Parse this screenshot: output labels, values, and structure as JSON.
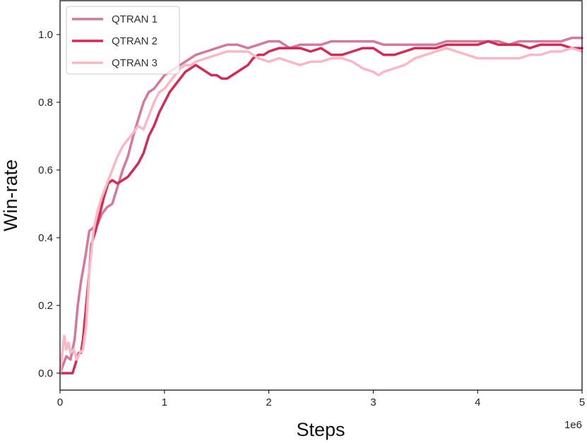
{
  "chart_data": {
    "type": "line",
    "title": "",
    "xlabel": "Steps",
    "ylabel": "Win-rate",
    "x_offset_label": "1e6",
    "xlim": [
      0,
      5
    ],
    "ylim": [
      -0.05,
      1.1
    ],
    "xticks": [
      "0",
      "1",
      "2",
      "3",
      "4",
      "5"
    ],
    "yticks": [
      "0.0",
      "0.2",
      "0.4",
      "0.6",
      "0.8",
      "1.0"
    ],
    "grid": false,
    "legend_position": "upper-left",
    "series": [
      {
        "name": "QTRAN 1",
        "color": "#d4789c",
        "points": [
          [
            0,
            0.0
          ],
          [
            0.06,
            0.05
          ],
          [
            0.1,
            0.04
          ],
          [
            0.14,
            0.1
          ],
          [
            0.17,
            0.2
          ],
          [
            0.2,
            0.27
          ],
          [
            0.24,
            0.34
          ],
          [
            0.28,
            0.42
          ],
          [
            0.32,
            0.43
          ],
          [
            0.36,
            0.44
          ],
          [
            0.4,
            0.47
          ],
          [
            0.45,
            0.49
          ],
          [
            0.5,
            0.5
          ],
          [
            0.55,
            0.55
          ],
          [
            0.6,
            0.6
          ],
          [
            0.65,
            0.64
          ],
          [
            0.7,
            0.7
          ],
          [
            0.75,
            0.75
          ],
          [
            0.8,
            0.8
          ],
          [
            0.85,
            0.83
          ],
          [
            0.9,
            0.84
          ],
          [
            0.95,
            0.86
          ],
          [
            1.0,
            0.88
          ],
          [
            1.05,
            0.89
          ],
          [
            1.1,
            0.9
          ],
          [
            1.15,
            0.91
          ],
          [
            1.2,
            0.92
          ],
          [
            1.3,
            0.94
          ],
          [
            1.4,
            0.95
          ],
          [
            1.5,
            0.96
          ],
          [
            1.6,
            0.97
          ],
          [
            1.7,
            0.97
          ],
          [
            1.8,
            0.96
          ],
          [
            1.9,
            0.97
          ],
          [
            2.0,
            0.98
          ],
          [
            2.1,
            0.98
          ],
          [
            2.2,
            0.96
          ],
          [
            2.3,
            0.97
          ],
          [
            2.4,
            0.97
          ],
          [
            2.5,
            0.97
          ],
          [
            2.6,
            0.98
          ],
          [
            2.7,
            0.98
          ],
          [
            2.8,
            0.98
          ],
          [
            2.9,
            0.98
          ],
          [
            3.0,
            0.98
          ],
          [
            3.1,
            0.97
          ],
          [
            3.2,
            0.97
          ],
          [
            3.3,
            0.97
          ],
          [
            3.4,
            0.97
          ],
          [
            3.5,
            0.97
          ],
          [
            3.6,
            0.97
          ],
          [
            3.7,
            0.98
          ],
          [
            3.8,
            0.98
          ],
          [
            3.9,
            0.98
          ],
          [
            4.0,
            0.98
          ],
          [
            4.1,
            0.98
          ],
          [
            4.2,
            0.98
          ],
          [
            4.3,
            0.97
          ],
          [
            4.4,
            0.98
          ],
          [
            4.5,
            0.98
          ],
          [
            4.6,
            0.98
          ],
          [
            4.7,
            0.98
          ],
          [
            4.8,
            0.98
          ],
          [
            4.9,
            0.99
          ],
          [
            5.0,
            0.99
          ]
        ]
      },
      {
        "name": "QTRAN 2",
        "color": "#d62a54",
        "points": [
          [
            0,
            0.0
          ],
          [
            0.08,
            0.0
          ],
          [
            0.12,
            0.0
          ],
          [
            0.15,
            0.03
          ],
          [
            0.18,
            0.06
          ],
          [
            0.2,
            0.06
          ],
          [
            0.22,
            0.1
          ],
          [
            0.25,
            0.2
          ],
          [
            0.28,
            0.3
          ],
          [
            0.3,
            0.38
          ],
          [
            0.34,
            0.42
          ],
          [
            0.38,
            0.47
          ],
          [
            0.42,
            0.52
          ],
          [
            0.46,
            0.56
          ],
          [
            0.5,
            0.57
          ],
          [
            0.55,
            0.56
          ],
          [
            0.6,
            0.57
          ],
          [
            0.65,
            0.58
          ],
          [
            0.7,
            0.6
          ],
          [
            0.75,
            0.62
          ],
          [
            0.8,
            0.65
          ],
          [
            0.85,
            0.7
          ],
          [
            0.9,
            0.73
          ],
          [
            0.95,
            0.77
          ],
          [
            1.0,
            0.8
          ],
          [
            1.05,
            0.83
          ],
          [
            1.1,
            0.85
          ],
          [
            1.15,
            0.87
          ],
          [
            1.2,
            0.89
          ],
          [
            1.25,
            0.9
          ],
          [
            1.3,
            0.91
          ],
          [
            1.35,
            0.9
          ],
          [
            1.4,
            0.89
          ],
          [
            1.45,
            0.88
          ],
          [
            1.5,
            0.88
          ],
          [
            1.55,
            0.87
          ],
          [
            1.6,
            0.87
          ],
          [
            1.65,
            0.88
          ],
          [
            1.7,
            0.89
          ],
          [
            1.75,
            0.9
          ],
          [
            1.8,
            0.91
          ],
          [
            1.85,
            0.93
          ],
          [
            1.9,
            0.94
          ],
          [
            1.95,
            0.94
          ],
          [
            2.0,
            0.95
          ],
          [
            2.1,
            0.96
          ],
          [
            2.2,
            0.96
          ],
          [
            2.3,
            0.96
          ],
          [
            2.4,
            0.95
          ],
          [
            2.5,
            0.96
          ],
          [
            2.6,
            0.94
          ],
          [
            2.7,
            0.94
          ],
          [
            2.8,
            0.95
          ],
          [
            2.9,
            0.96
          ],
          [
            3.0,
            0.96
          ],
          [
            3.05,
            0.95
          ],
          [
            3.1,
            0.94
          ],
          [
            3.2,
            0.94
          ],
          [
            3.3,
            0.95
          ],
          [
            3.4,
            0.96
          ],
          [
            3.5,
            0.96
          ],
          [
            3.6,
            0.96
          ],
          [
            3.7,
            0.97
          ],
          [
            3.8,
            0.97
          ],
          [
            3.9,
            0.97
          ],
          [
            4.0,
            0.97
          ],
          [
            4.1,
            0.98
          ],
          [
            4.2,
            0.97
          ],
          [
            4.3,
            0.97
          ],
          [
            4.4,
            0.97
          ],
          [
            4.5,
            0.96
          ],
          [
            4.6,
            0.97
          ],
          [
            4.7,
            0.97
          ],
          [
            4.8,
            0.97
          ],
          [
            4.9,
            0.96
          ],
          [
            5.0,
            0.96
          ]
        ]
      },
      {
        "name": "QTRAN 3",
        "color": "#f9b8c4",
        "points": [
          [
            0,
            0.0
          ],
          [
            0.04,
            0.11
          ],
          [
            0.06,
            0.07
          ],
          [
            0.08,
            0.09
          ],
          [
            0.1,
            0.06
          ],
          [
            0.13,
            0.07
          ],
          [
            0.16,
            0.04
          ],
          [
            0.19,
            0.06
          ],
          [
            0.22,
            0.07
          ],
          [
            0.25,
            0.14
          ],
          [
            0.28,
            0.3
          ],
          [
            0.32,
            0.42
          ],
          [
            0.36,
            0.48
          ],
          [
            0.4,
            0.52
          ],
          [
            0.45,
            0.56
          ],
          [
            0.5,
            0.6
          ],
          [
            0.55,
            0.64
          ],
          [
            0.6,
            0.67
          ],
          [
            0.65,
            0.69
          ],
          [
            0.7,
            0.71
          ],
          [
            0.75,
            0.73
          ],
          [
            0.8,
            0.72
          ],
          [
            0.85,
            0.76
          ],
          [
            0.9,
            0.8
          ],
          [
            0.95,
            0.83
          ],
          [
            1.0,
            0.84
          ],
          [
            1.05,
            0.86
          ],
          [
            1.1,
            0.88
          ],
          [
            1.15,
            0.9
          ],
          [
            1.2,
            0.91
          ],
          [
            1.25,
            0.91
          ],
          [
            1.3,
            0.92
          ],
          [
            1.4,
            0.93
          ],
          [
            1.5,
            0.94
          ],
          [
            1.6,
            0.95
          ],
          [
            1.7,
            0.95
          ],
          [
            1.8,
            0.95
          ],
          [
            1.9,
            0.93
          ],
          [
            2.0,
            0.92
          ],
          [
            2.1,
            0.93
          ],
          [
            2.2,
            0.92
          ],
          [
            2.3,
            0.91
          ],
          [
            2.4,
            0.92
          ],
          [
            2.5,
            0.92
          ],
          [
            2.6,
            0.93
          ],
          [
            2.7,
            0.93
          ],
          [
            2.8,
            0.92
          ],
          [
            2.9,
            0.9
          ],
          [
            3.0,
            0.89
          ],
          [
            3.05,
            0.88
          ],
          [
            3.1,
            0.89
          ],
          [
            3.2,
            0.9
          ],
          [
            3.3,
            0.91
          ],
          [
            3.4,
            0.93
          ],
          [
            3.5,
            0.94
          ],
          [
            3.6,
            0.95
          ],
          [
            3.7,
            0.96
          ],
          [
            3.8,
            0.95
          ],
          [
            3.9,
            0.94
          ],
          [
            4.0,
            0.93
          ],
          [
            4.1,
            0.93
          ],
          [
            4.2,
            0.93
          ],
          [
            4.3,
            0.93
          ],
          [
            4.4,
            0.93
          ],
          [
            4.5,
            0.94
          ],
          [
            4.6,
            0.94
          ],
          [
            4.7,
            0.95
          ],
          [
            4.8,
            0.95
          ],
          [
            4.9,
            0.96
          ],
          [
            5.0,
            0.95
          ]
        ]
      }
    ]
  }
}
